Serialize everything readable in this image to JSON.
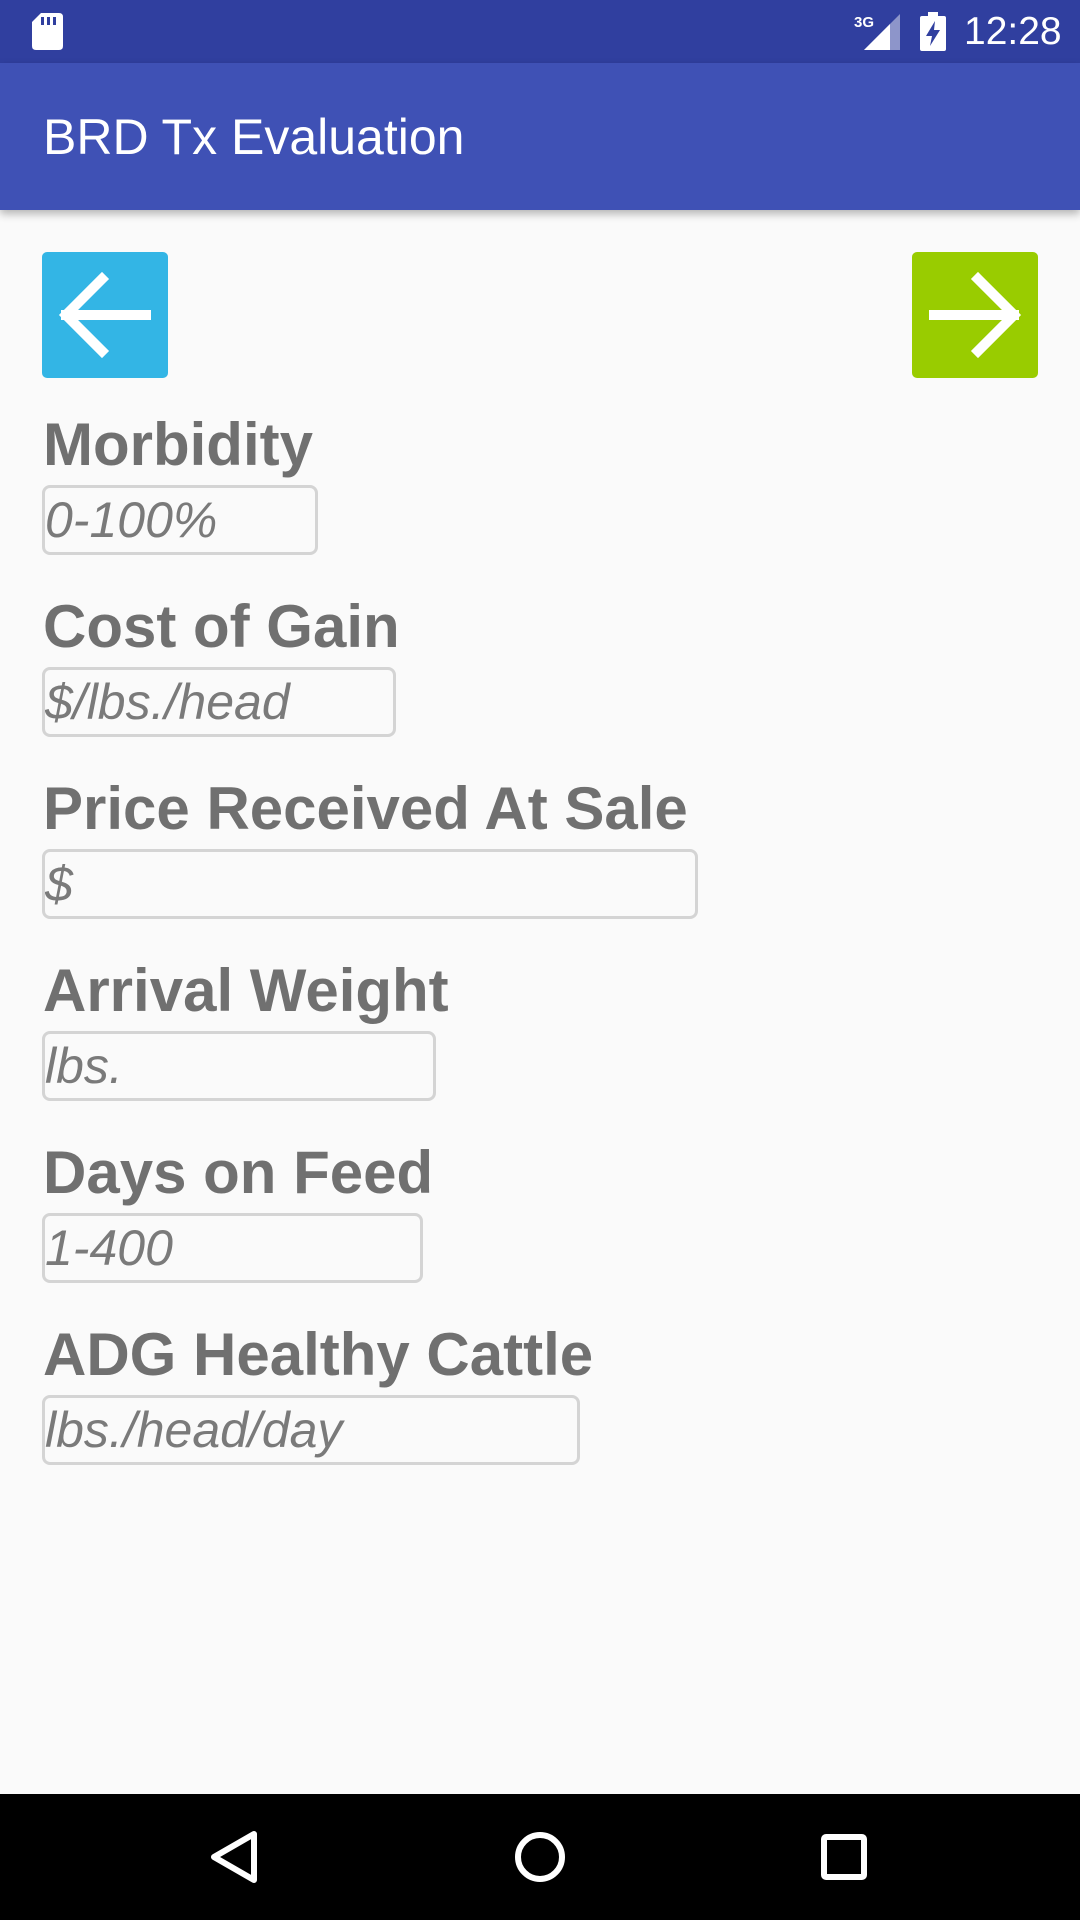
{
  "status_bar": {
    "time": "12:28",
    "network_label": "3G",
    "icons": [
      "sd-card-icon",
      "signal-icon",
      "battery-charging-icon"
    ]
  },
  "app_bar": {
    "title": "BRD Tx Evaluation",
    "color": "#3f51b5",
    "status_color": "#303f9f"
  },
  "nav_buttons": {
    "back": {
      "icon": "arrow-left-icon",
      "color": "#33b5e5"
    },
    "next": {
      "icon": "arrow-right-icon",
      "color": "#99cc00"
    }
  },
  "form": {
    "fields": [
      {
        "label": "Morbidity",
        "value": "",
        "placeholder": "0-100%"
      },
      {
        "label": "Cost of Gain",
        "value": "",
        "placeholder": "$/lbs./head"
      },
      {
        "label": "Price Received At Sale",
        "value": "",
        "placeholder": "$"
      },
      {
        "label": "Arrival Weight",
        "value": "",
        "placeholder": "lbs."
      },
      {
        "label": "Days on Feed",
        "value": "",
        "placeholder": "1-400"
      },
      {
        "label": "ADG Healthy Cattle",
        "value": "",
        "placeholder": "lbs./head/day"
      }
    ]
  },
  "system_nav": {
    "buttons": [
      "back-triangle-icon",
      "home-circle-icon",
      "recents-square-icon"
    ]
  }
}
